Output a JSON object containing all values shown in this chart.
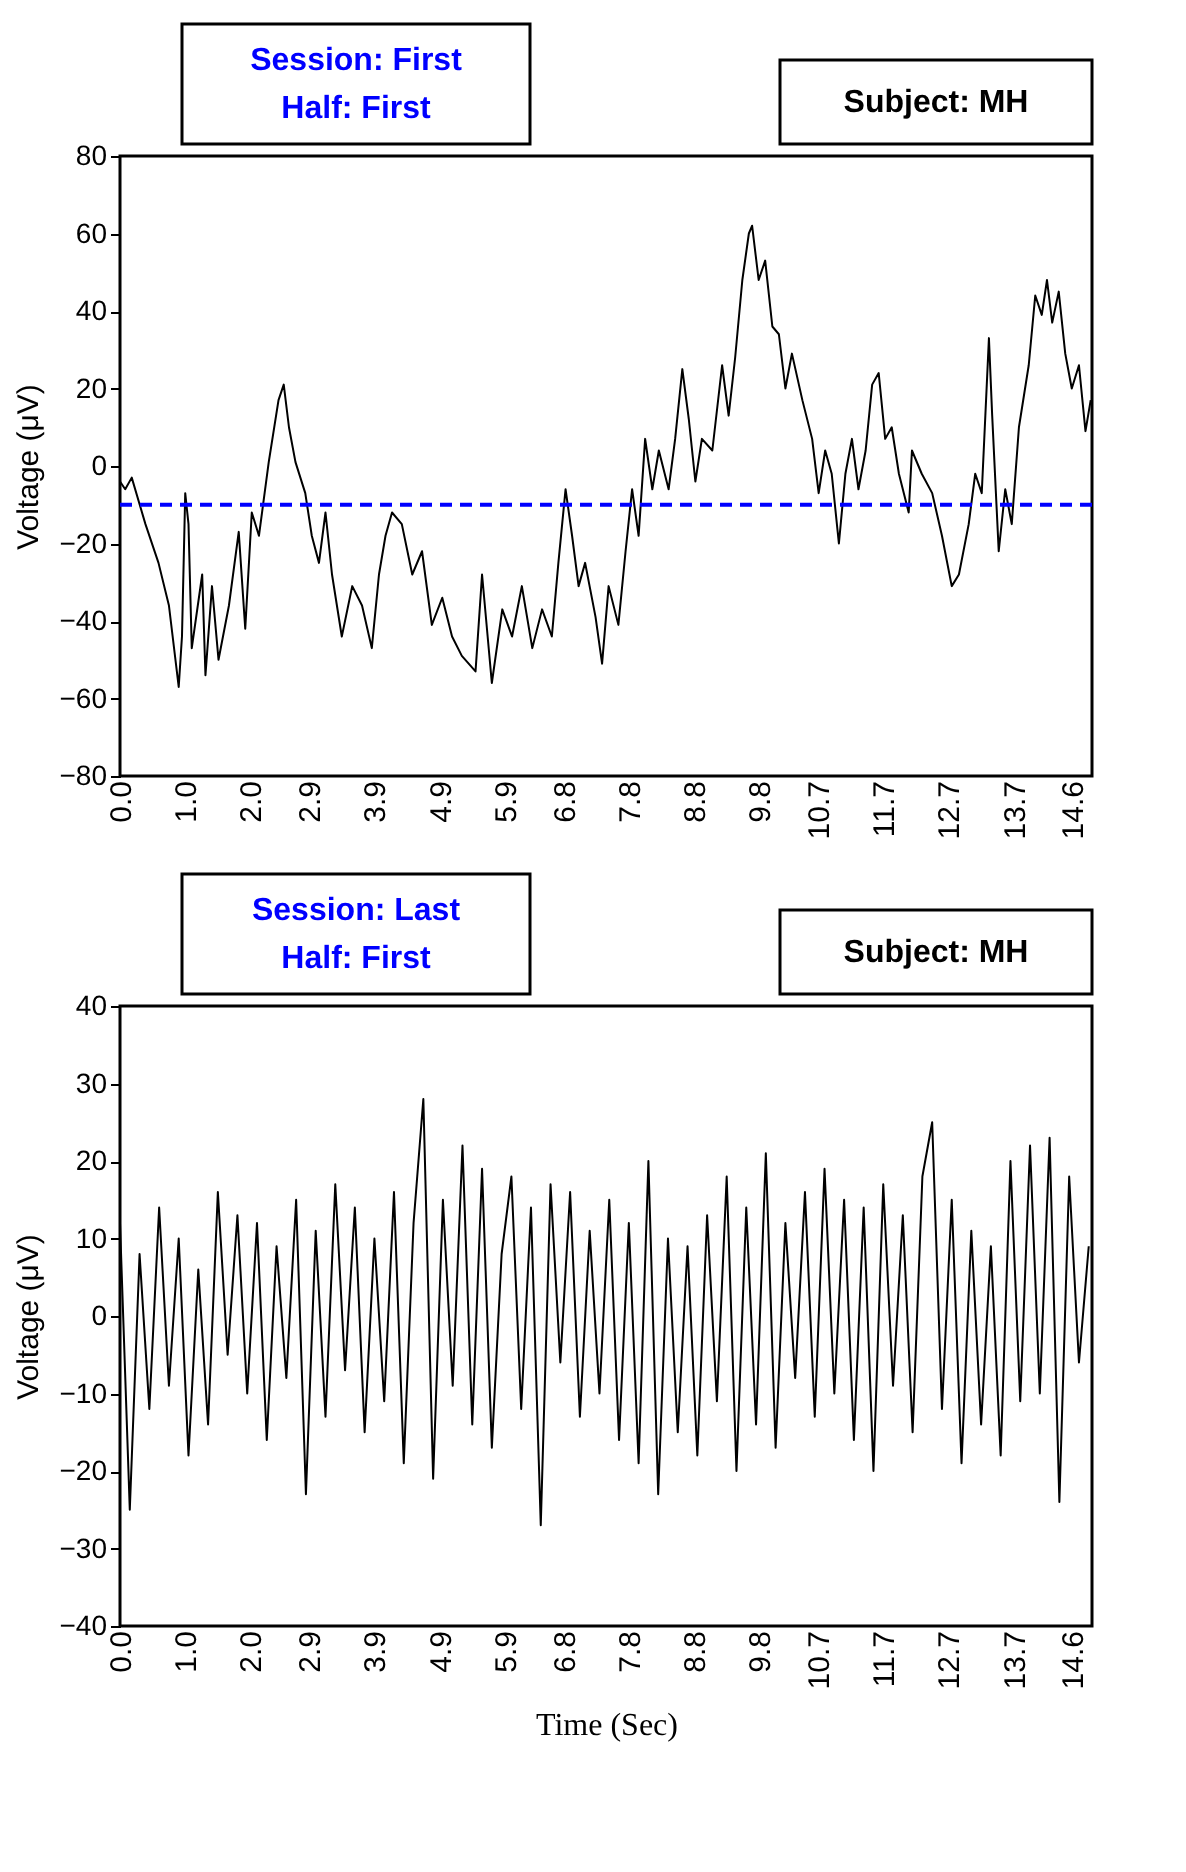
{
  "chart_data": [
    {
      "type": "line",
      "ylabel": "Voltage (μV)",
      "annotations": [
        "Session: First",
        "Half: First",
        "Subject: MH"
      ],
      "xlim": [
        0,
        14.9
      ],
      "xticks": [
        {
          "value": 0,
          "label": "0.0"
        },
        {
          "value": 1,
          "label": "1.0"
        },
        {
          "value": 2,
          "label": "2.0"
        },
        {
          "value": 2.9,
          "label": "2.9"
        },
        {
          "value": 3.9,
          "label": "3.9"
        },
        {
          "value": 4.9,
          "label": "4.9"
        },
        {
          "value": 5.9,
          "label": "5.9"
        },
        {
          "value": 6.8,
          "label": "6.8"
        },
        {
          "value": 7.8,
          "label": "7.8"
        },
        {
          "value": 8.8,
          "label": "8.8"
        },
        {
          "value": 9.8,
          "label": "9.8"
        },
        {
          "value": 10.7,
          "label": "10.7"
        },
        {
          "value": 11.7,
          "label": "11.7"
        },
        {
          "value": 12.7,
          "label": "12.7"
        },
        {
          "value": 13.7,
          "label": "13.7"
        },
        {
          "value": 14.6,
          "label": "14.6"
        }
      ],
      "ylim": [
        -80,
        80
      ],
      "yticks": [
        -80,
        -60,
        -40,
        -20,
        0,
        20,
        40,
        60,
        80
      ],
      "grid": false,
      "line_style": "solid",
      "ref_lines": [
        {
          "axis": "y",
          "value": -10,
          "color": "#0000ff",
          "line_style": "dashed"
        }
      ],
      "series": [
        {
          "color": "#000000",
          "x": [
            0.0,
            0.08,
            0.18,
            0.39,
            0.59,
            0.75,
            0.9,
            0.95,
            1.0,
            1.05,
            1.1,
            1.26,
            1.31,
            1.41,
            1.51,
            1.67,
            1.82,
            1.92,
            2.02,
            2.13,
            2.28,
            2.43,
            2.51,
            2.59,
            2.69,
            2.84,
            2.94,
            3.05,
            3.15,
            3.25,
            3.4,
            3.56,
            3.71,
            3.86,
            3.97,
            4.07,
            4.17,
            4.32,
            4.48,
            4.63,
            4.78,
            4.94,
            5.09,
            5.24,
            5.45,
            5.55,
            5.7,
            5.86,
            6.01,
            6.16,
            6.32,
            6.47,
            6.62,
            6.72,
            6.83,
            6.93,
            7.03,
            7.13,
            7.29,
            7.39,
            7.49,
            7.64,
            7.75,
            7.85,
            7.95,
            8.05,
            8.16,
            8.26,
            8.41,
            8.51,
            8.62,
            8.72,
            8.82,
            8.92,
            9.08,
            9.23,
            9.33,
            9.43,
            9.54,
            9.64,
            9.69,
            9.79,
            9.89,
            10.0,
            10.1,
            10.2,
            10.3,
            10.46,
            10.61,
            10.71,
            10.81,
            10.91,
            11.02,
            11.12,
            11.22,
            11.32,
            11.43,
            11.53,
            11.63,
            11.73,
            11.83,
            11.94,
            12.09,
            12.14,
            12.29,
            12.45,
            12.6,
            12.75,
            12.86,
            13.01,
            13.11,
            13.21,
            13.32,
            13.37,
            13.47,
            13.57,
            13.67,
            13.78,
            13.93,
            14.03,
            14.13,
            14.21,
            14.29,
            14.39,
            14.49,
            14.59,
            14.7,
            14.8,
            14.88
          ],
          "values": [
            -4,
            -6,
            -3,
            -15,
            -25,
            -36,
            -57,
            -44,
            -7,
            -15,
            -47,
            -28,
            -54,
            -31,
            -50,
            -36,
            -17,
            -42,
            -12,
            -18,
            1,
            17,
            21,
            10,
            1,
            -7,
            -18,
            -25,
            -12,
            -28,
            -44,
            -31,
            -36,
            -47,
            -28,
            -18,
            -12,
            -15,
            -28,
            -22,
            -41,
            -34,
            -44,
            -49,
            -53,
            -28,
            -56,
            -37,
            -44,
            -31,
            -47,
            -37,
            -44,
            -25,
            -6,
            -18,
            -31,
            -25,
            -39,
            -51,
            -31,
            -41,
            -22,
            -6,
            -18,
            7,
            -6,
            4,
            -6,
            7,
            25,
            12,
            -4,
            7,
            4,
            26,
            13,
            28,
            48,
            60,
            62,
            48,
            53,
            36,
            34,
            20,
            29,
            17,
            7,
            -7,
            4,
            -2,
            -20,
            -2,
            7,
            -6,
            4,
            21,
            24,
            7,
            10,
            -2,
            -12,
            4,
            -2,
            -7,
            -18,
            -31,
            -28,
            -15,
            -2,
            -7,
            33,
            13,
            -22,
            -6,
            -15,
            10,
            26,
            44,
            39,
            48,
            37,
            45,
            29,
            20,
            26,
            9,
            17
          ]
        }
      ]
    },
    {
      "type": "line",
      "xlabel": "Time (Sec)",
      "ylabel": "Voltage (μV)",
      "annotations": [
        "Session: Last",
        "Half: First",
        "Subject: MH"
      ],
      "xlim": [
        0,
        14.9
      ],
      "xticks": [
        {
          "value": 0,
          "label": "0.0"
        },
        {
          "value": 1,
          "label": "1.0"
        },
        {
          "value": 2,
          "label": "2.0"
        },
        {
          "value": 2.9,
          "label": "2.9"
        },
        {
          "value": 3.9,
          "label": "3.9"
        },
        {
          "value": 4.9,
          "label": "4.9"
        },
        {
          "value": 5.9,
          "label": "5.9"
        },
        {
          "value": 6.8,
          "label": "6.8"
        },
        {
          "value": 7.8,
          "label": "7.8"
        },
        {
          "value": 8.8,
          "label": "8.8"
        },
        {
          "value": 9.8,
          "label": "9.8"
        },
        {
          "value": 10.7,
          "label": "10.7"
        },
        {
          "value": 11.7,
          "label": "11.7"
        },
        {
          "value": 12.7,
          "label": "12.7"
        },
        {
          "value": 13.7,
          "label": "13.7"
        },
        {
          "value": 14.6,
          "label": "14.6"
        }
      ],
      "ylim": [
        -40,
        40
      ],
      "yticks": [
        -40,
        -30,
        -20,
        -10,
        0,
        10,
        20,
        30,
        40
      ],
      "grid": false,
      "line_style": "solid",
      "series": [
        {
          "color": "#000000",
          "x": [
            0.0,
            0.15,
            0.3,
            0.45,
            0.6,
            0.75,
            0.9,
            1.05,
            1.2,
            1.35,
            1.5,
            1.65,
            1.8,
            1.95,
            2.1,
            2.25,
            2.4,
            2.55,
            2.7,
            2.85,
            3.0,
            3.15,
            3.3,
            3.45,
            3.6,
            3.75,
            3.9,
            4.05,
            4.2,
            4.35,
            4.5,
            4.65,
            4.8,
            4.95,
            5.1,
            5.25,
            5.4,
            5.55,
            5.7,
            5.85,
            6.0,
            6.15,
            6.3,
            6.45,
            6.6,
            6.75,
            6.9,
            7.05,
            7.2,
            7.35,
            7.5,
            7.65,
            7.8,
            7.95,
            8.1,
            8.25,
            8.4,
            8.55,
            8.7,
            8.85,
            9.0,
            9.15,
            9.3,
            9.45,
            9.6,
            9.75,
            9.9,
            10.05,
            10.2,
            10.35,
            10.5,
            10.65,
            10.8,
            10.95,
            11.1,
            11.25,
            11.4,
            11.55,
            11.7,
            11.85,
            12.0,
            12.15,
            12.3,
            12.45,
            12.6,
            12.75,
            12.9,
            13.05,
            13.2,
            13.35,
            13.5,
            13.65,
            13.8,
            13.95,
            14.1,
            14.25,
            14.4,
            14.55,
            14.7,
            14.85
          ],
          "values": [
            12,
            -25,
            8,
            -12,
            14,
            -9,
            10,
            -18,
            6,
            -14,
            16,
            -5,
            13,
            -10,
            12,
            -16,
            9,
            -8,
            15,
            -23,
            11,
            -13,
            17,
            -7,
            14,
            -15,
            10,
            -11,
            16,
            -19,
            12,
            28,
            -21,
            15,
            -9,
            22,
            -14,
            19,
            -17,
            8,
            18,
            -12,
            14,
            -27,
            17,
            -6,
            16,
            -13,
            11,
            -10,
            15,
            -16,
            12,
            -19,
            20,
            -23,
            10,
            -15,
            9,
            -18,
            13,
            -11,
            18,
            -20,
            14,
            -14,
            21,
            -17,
            12,
            -8,
            16,
            -13,
            19,
            -10,
            15,
            -16,
            14,
            -20,
            17,
            -9,
            13,
            -15,
            18,
            25,
            -12,
            15,
            -19,
            11,
            -14,
            9,
            -18,
            20,
            -11,
            22,
            -10,
            23,
            -24,
            18,
            -6,
            9
          ]
        }
      ]
    }
  ]
}
